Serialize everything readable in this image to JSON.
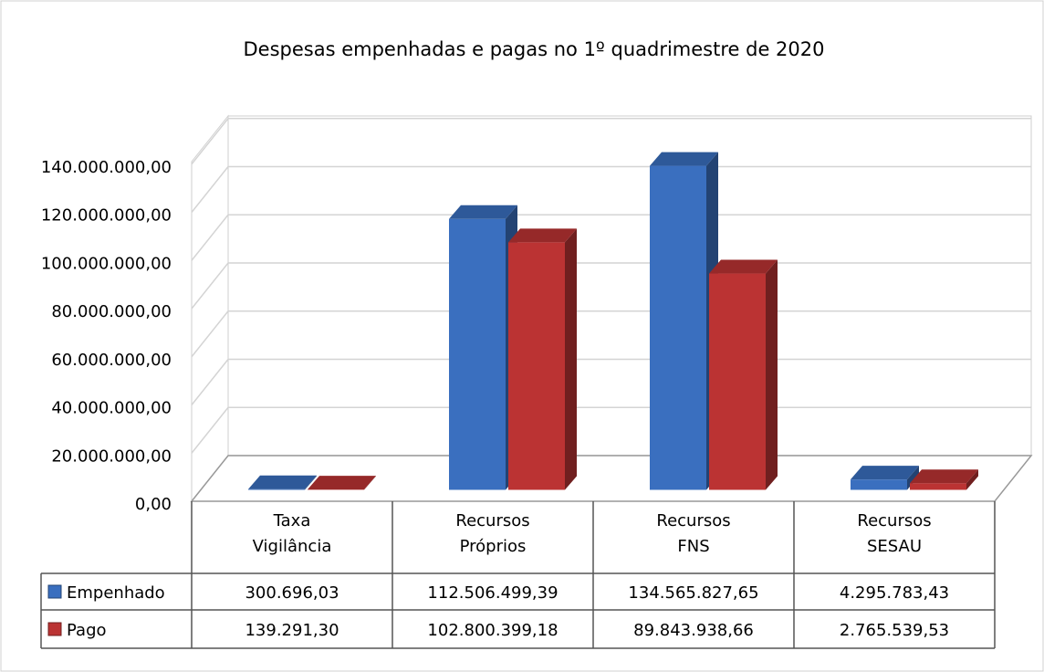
{
  "chart_data": {
    "type": "bar3d",
    "title": "Despesas empenhadas e pagas no 1º quadrimestre de 2020",
    "categories": [
      "Taxa\nVigilância",
      "Recursos\nPróprios",
      "Recursos\nFNS",
      "Recursos\nSESAU"
    ],
    "series": [
      {
        "name": "Empenhado",
        "color": "#3a6fbf",
        "values": [
          300696.03,
          112506499.39,
          134565827.65,
          4295783.43
        ],
        "value_labels": [
          "300.696,03",
          "112.506.499,39",
          "134.565.827,65",
          "4.295.783,43"
        ]
      },
      {
        "name": "Pago",
        "color": "#bb3333",
        "values": [
          139291.3,
          102800399.18,
          89843938.66,
          2765539.53
        ],
        "value_labels": [
          "139.291,30",
          "102.800.399,18",
          "89.843.938,66",
          "2.765.539,53"
        ]
      }
    ],
    "ylim": [
      0,
      160000000
    ],
    "yticks": [
      {
        "value": 0,
        "label": "0,00"
      },
      {
        "value": 20000000,
        "label": "20.000.000,00"
      },
      {
        "value": 40000000,
        "label": "40.000.000,00"
      },
      {
        "value": 60000000,
        "label": "60.000.000,00"
      },
      {
        "value": 80000000,
        "label": "80.000.000,00"
      },
      {
        "value": 100000000,
        "label": "100.000.000,00"
      },
      {
        "value": 120000000,
        "label": "120.000.000,00"
      },
      {
        "value": 140000000,
        "label": "140.000.000,00"
      }
    ],
    "grid": true
  }
}
